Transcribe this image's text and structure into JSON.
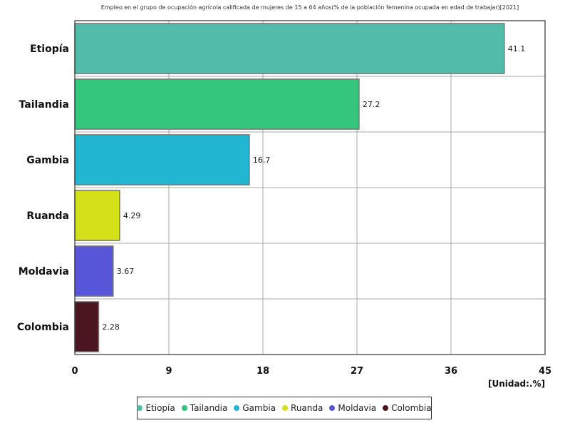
{
  "chart_data": {
    "type": "bar",
    "orientation": "horizontal",
    "title": "Empleo en el grupo de ocupación agrícola calificada de mujeres de 15 a 64 años(% de la población femenina ocupada en edad de trabajar)[2021]",
    "categories": [
      "Etiopía",
      "Tailandia",
      "Gambia",
      "Ruanda",
      "Moldavia",
      "Colombia"
    ],
    "values": [
      41.1,
      27.2,
      16.7,
      4.29,
      3.67,
      2.28
    ],
    "value_labels": [
      "41.1",
      "27.2",
      "16.7",
      "4.29",
      "3.67",
      "2.28"
    ],
    "colors": [
      "#52bba9",
      "#35c67d",
      "#22b6d2",
      "#d4e01a",
      "#5756d8",
      "#4a1620"
    ],
    "xlim": [
      0,
      45
    ],
    "xticks": [
      "0",
      "9",
      "18",
      "27",
      "36",
      "45"
    ],
    "xtick_values": [
      0,
      9,
      18,
      27,
      36,
      45
    ],
    "unit_label": "[Unidad:.%]",
    "grid": true,
    "legend_position": "bottom"
  },
  "legend": {
    "items": [
      {
        "label": "Etiopía",
        "color": "#52bba9"
      },
      {
        "label": "Tailandia",
        "color": "#35c67d"
      },
      {
        "label": "Gambia",
        "color": "#22b6d2"
      },
      {
        "label": "Ruanda",
        "color": "#d4e01a"
      },
      {
        "label": "Moldavia",
        "color": "#5756d8"
      },
      {
        "label": "Colombia",
        "color": "#4a1620"
      }
    ]
  }
}
